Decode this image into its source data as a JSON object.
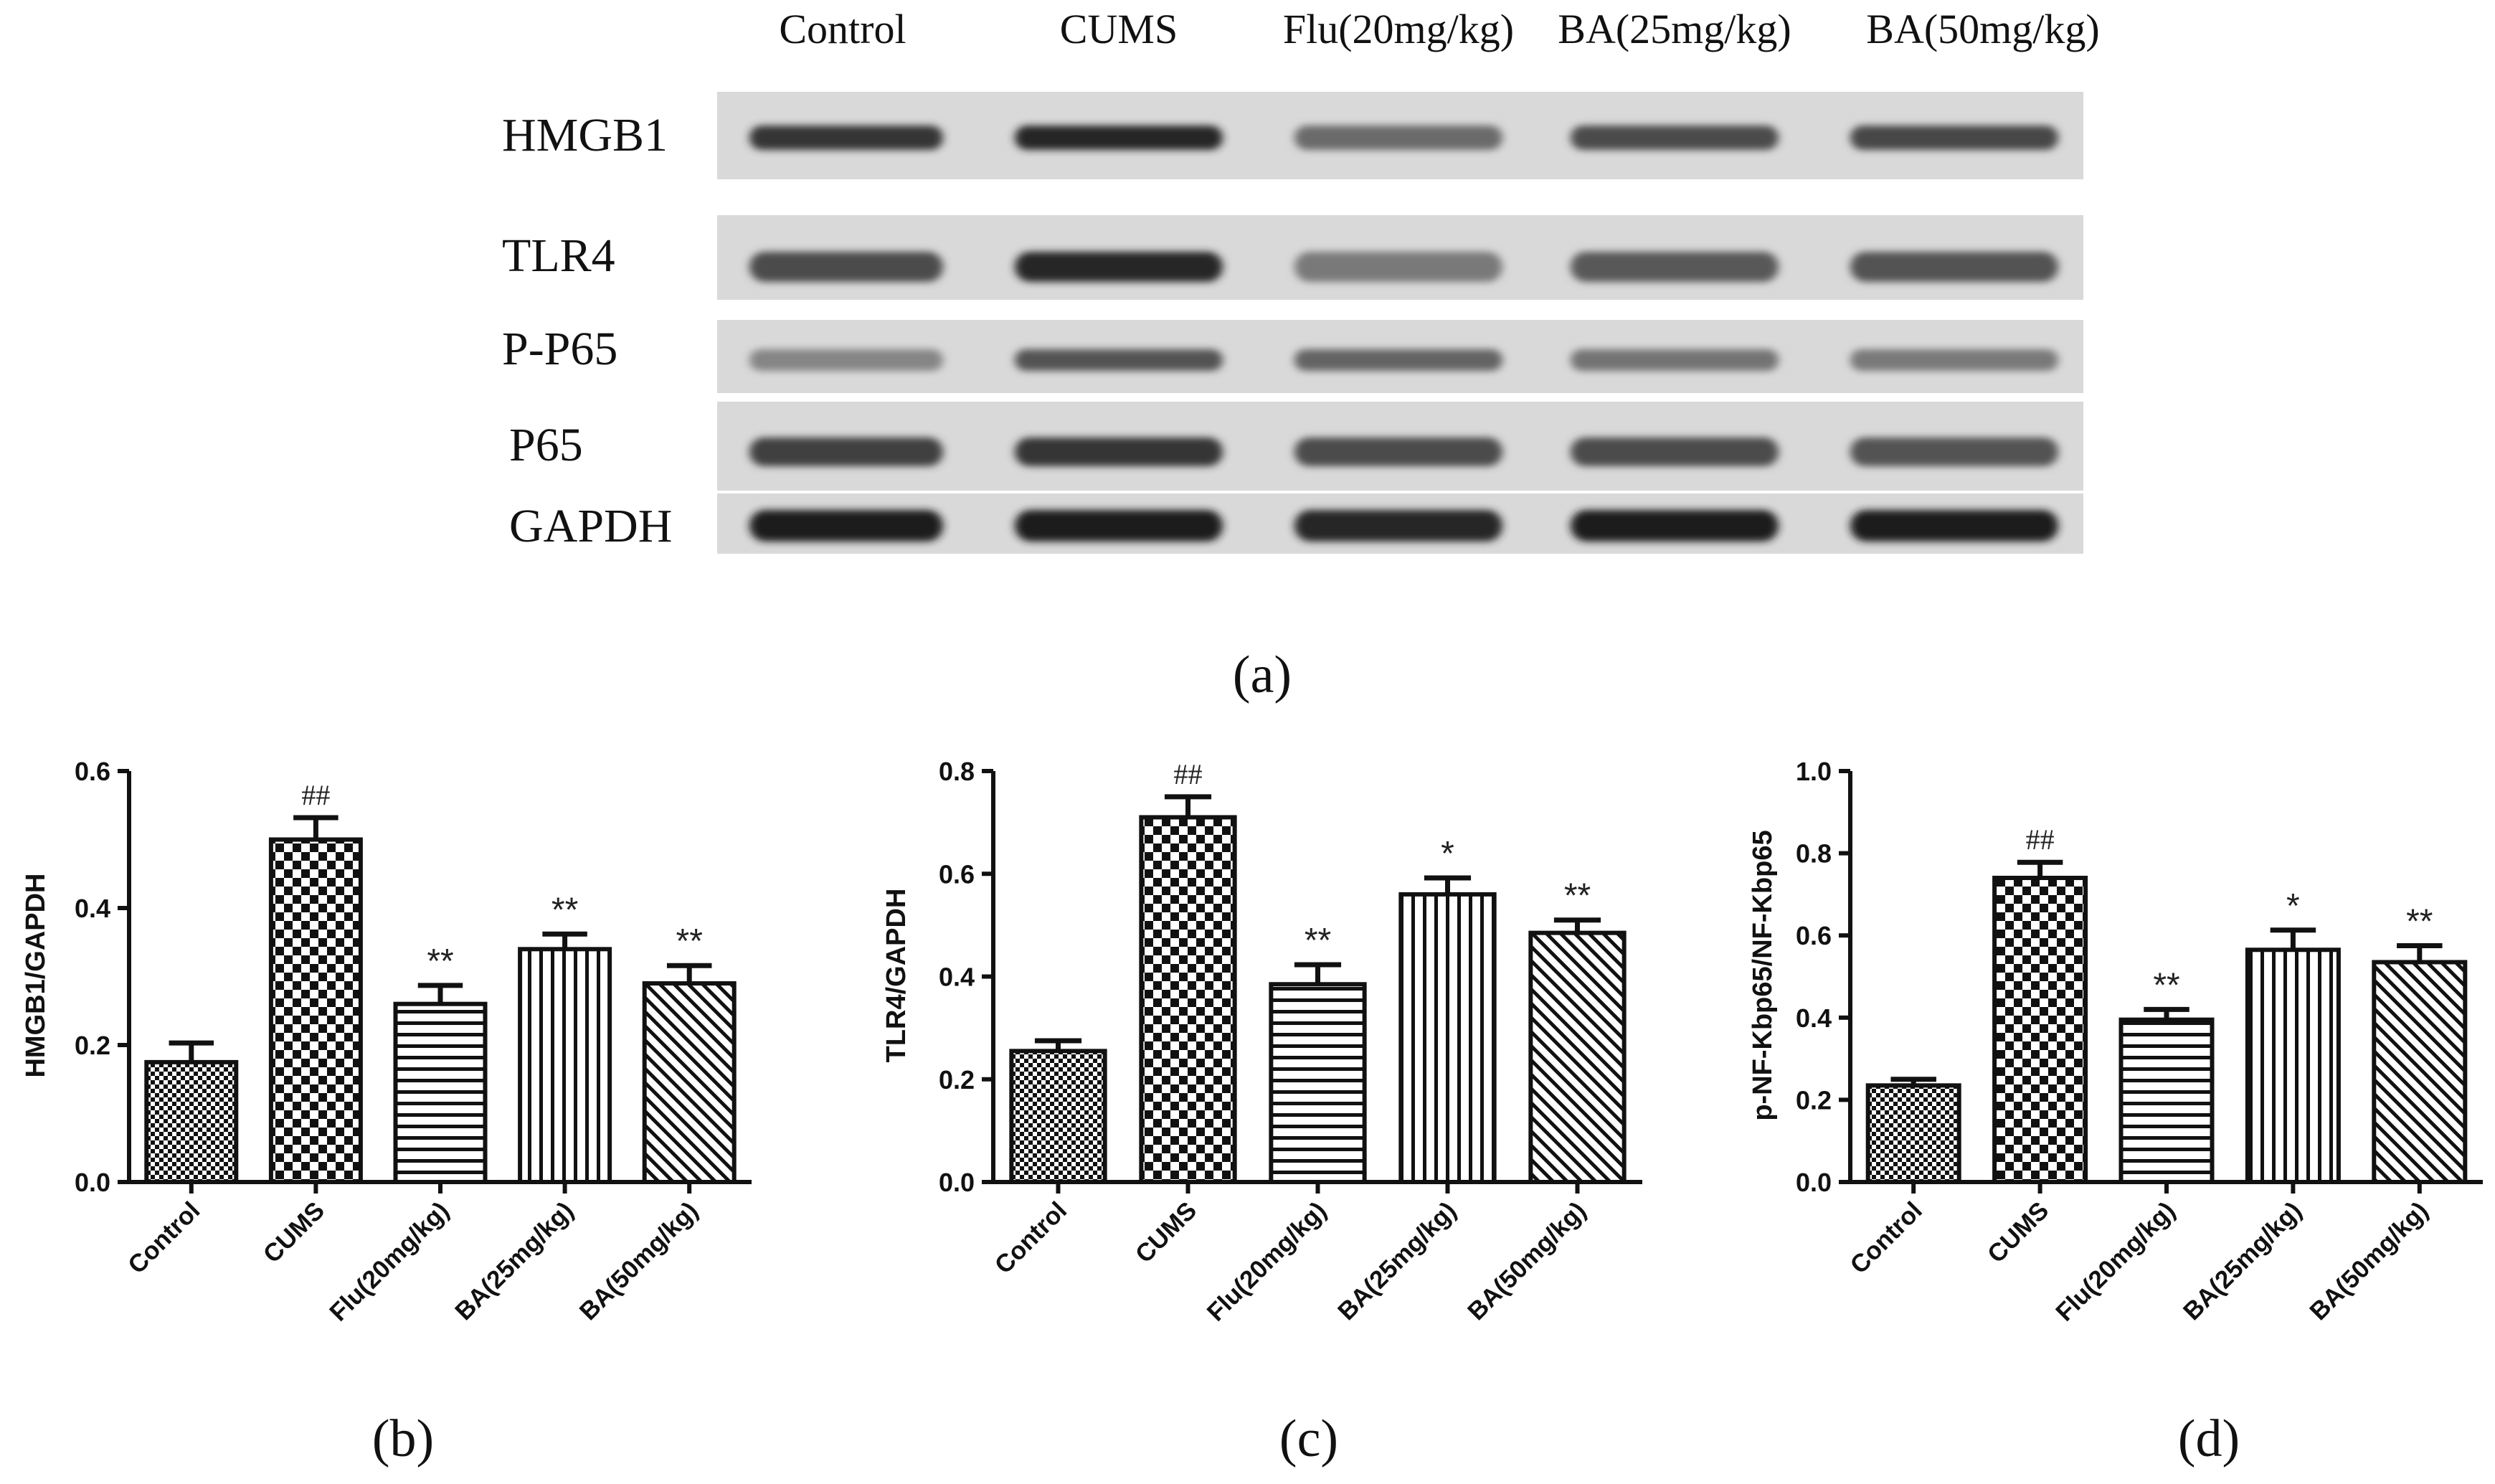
{
  "blot": {
    "lane_labels": [
      "Control",
      "CUMS",
      "Flu(20mg/kg)",
      "BA(25mg/kg)",
      "BA(50mg/kg)"
    ],
    "rows": [
      {
        "label": "HMGB1",
        "intensity": [
          0.85,
          0.92,
          0.62,
          0.75,
          0.78
        ]
      },
      {
        "label": "TLR4",
        "intensity": [
          0.75,
          0.92,
          0.55,
          0.7,
          0.72
        ]
      },
      {
        "label": "P-P65",
        "intensity": [
          0.5,
          0.72,
          0.65,
          0.58,
          0.55
        ]
      },
      {
        "label": "P65",
        "intensity": [
          0.8,
          0.85,
          0.75,
          0.75,
          0.72
        ]
      },
      {
        "label": "GAPDH",
        "intensity": [
          0.95,
          0.95,
          0.92,
          0.95,
          0.95
        ]
      }
    ],
    "caption": "(a)"
  },
  "chart_data": [
    {
      "type": "bar",
      "categories": [
        "Control",
        "CUMS",
        "Flu(20mg/kg)",
        "BA(25mg/kg)",
        "BA(50mg/kg)"
      ],
      "values": [
        0.175,
        0.5,
        0.26,
        0.34,
        0.29
      ],
      "errors": [
        0.028,
        0.032,
        0.027,
        0.022,
        0.026
      ],
      "annotations": [
        "",
        "##",
        "**",
        "**",
        "**"
      ],
      "patterns": [
        "fine-check",
        "coarse-check",
        "horizontal",
        "vertical",
        "diagonal"
      ],
      "ylabel": "HMGB1/GAPDH",
      "ylim": [
        0,
        0.6
      ],
      "yticks": [
        "0.0",
        "0.2",
        "0.4",
        "0.6"
      ],
      "caption": "(b)"
    },
    {
      "type": "bar",
      "categories": [
        "Control",
        "CUMS",
        "Flu(20mg/kg)",
        "BA(25mg/kg)",
        "BA(50mg/kg)"
      ],
      "values": [
        0.255,
        0.71,
        0.385,
        0.56,
        0.485
      ],
      "errors": [
        0.02,
        0.04,
        0.038,
        0.032,
        0.025
      ],
      "annotations": [
        "",
        "##",
        "**",
        "*",
        "**"
      ],
      "patterns": [
        "fine-check",
        "coarse-check",
        "horizontal",
        "vertical",
        "diagonal"
      ],
      "ylabel": "TLR4/GAPDH",
      "ylim": [
        0,
        0.8
      ],
      "yticks": [
        "0.0",
        "0.2",
        "0.4",
        "0.6",
        "0.8"
      ],
      "caption": "(c)"
    },
    {
      "type": "bar",
      "categories": [
        "Control",
        "CUMS",
        "Flu(20mg/kg)",
        "BA(25mg/kg)",
        "BA(50mg/kg)"
      ],
      "values": [
        0.235,
        0.74,
        0.395,
        0.565,
        0.535
      ],
      "errors": [
        0.015,
        0.038,
        0.025,
        0.048,
        0.04
      ],
      "annotations": [
        "",
        "##",
        "**",
        "*",
        "**"
      ],
      "patterns": [
        "fine-check",
        "coarse-check",
        "horizontal",
        "vertical",
        "diagonal"
      ],
      "ylabel": "p-NF-Kbp65/NF-Kbp65",
      "ylim": [
        0,
        1.0
      ],
      "yticks": [
        "0.0",
        "0.2",
        "0.4",
        "0.6",
        "0.8",
        "1.0"
      ],
      "caption": "(d)"
    }
  ]
}
